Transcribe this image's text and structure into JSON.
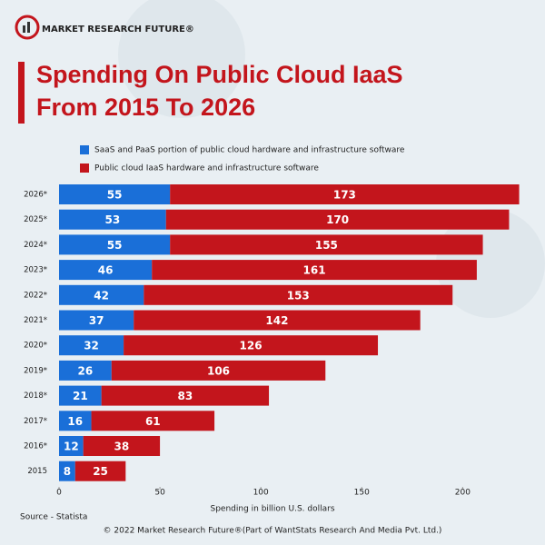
{
  "brand": "MARKET RESEARCH FUTURE®",
  "source": "Source - Statista",
  "copyright": "© 2022 Market Research Future®(Part of WantStats Research And Media Pvt. Ltd.)",
  "chart_data": {
    "type": "stacked-bar-horizontal",
    "title": [
      "Spending On Public Cloud IaaS",
      "From 2015 To 2026"
    ],
    "x_label": "Spending in billion U.S. dollars",
    "categories": [
      "2026*",
      "2025*",
      "2024*",
      "2023*",
      "2022*",
      "2021*",
      "2020*",
      "2019*",
      "2018*",
      "2017*",
      "2016*",
      "2015"
    ],
    "series": [
      {
        "name": "SaaS and PaaS portion of public cloud hardware and infrastructure software",
        "color": "#1a6fd8",
        "values": [
          55,
          53,
          55,
          46,
          42,
          37,
          32,
          26,
          21,
          16,
          12,
          8
        ]
      },
      {
        "name": "Public cloud IaaS hardware and infrastructure software",
        "color": "#c3151c",
        "values": [
          173,
          170,
          155,
          161,
          153,
          142,
          126,
          106,
          83,
          61,
          38,
          25
        ]
      }
    ],
    "xlim": [
      0,
      230
    ],
    "xticks": [
      0,
      50,
      100,
      150,
      200
    ],
    "grid": false
  }
}
